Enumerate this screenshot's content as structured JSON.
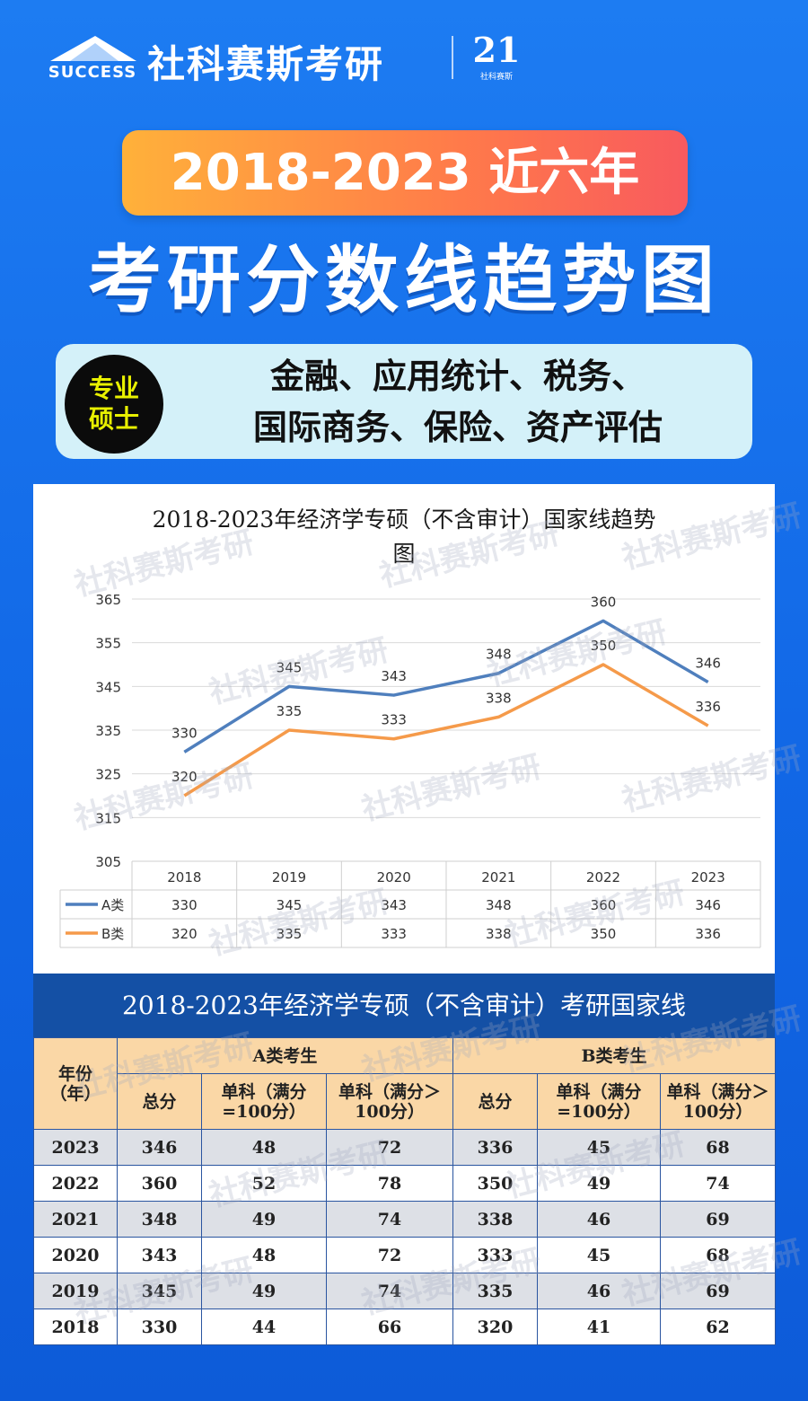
{
  "brand": {
    "success_text": "SUCCESS",
    "name": "社科赛斯考研",
    "badge_big": "21",
    "badge_small": "社科赛斯"
  },
  "hero": {
    "year_range": "2018-2023 近六年",
    "title": "考研分数线趋势图"
  },
  "tag": {
    "label_line1": "专业",
    "label_line2": "硕士",
    "majors_line1": "金融、应用统计、税务、",
    "majors_line2": "国际商务、保险、资产评估"
  },
  "watermark": "社科赛斯考研",
  "chart_data": {
    "type": "line",
    "title_line1": "2018-2023年经济学专硕（不含审计）国家线趋势",
    "title_line2": "图",
    "categories": [
      "2018",
      "2019",
      "2020",
      "2021",
      "2022",
      "2023"
    ],
    "series": [
      {
        "name": "A类",
        "values": [
          330,
          345,
          343,
          348,
          360,
          346
        ],
        "color": "#4f7fbd"
      },
      {
        "name": "B类",
        "values": [
          320,
          335,
          333,
          338,
          350,
          336
        ],
        "color": "#f59a4a"
      }
    ],
    "ylim": [
      305,
      365
    ],
    "yticks": [
      305,
      315,
      325,
      335,
      345,
      355,
      365
    ],
    "grid": true,
    "legend": "data-table-below"
  },
  "table": {
    "title": "2018-2023年经济学专硕（不含审计）考研国家线",
    "year_header": "年份（年）",
    "group_a": "A类考生",
    "group_b": "B类考生",
    "sub_total": "总分",
    "sub_100": "单科（满分=100分）",
    "sub_gt100": "单科（满分＞100分）",
    "rows": [
      {
        "year": "2023",
        "a_total": "346",
        "a_100": "48",
        "a_gt100": "72",
        "b_total": "336",
        "b_100": "45",
        "b_gt100": "68"
      },
      {
        "year": "2022",
        "a_total": "360",
        "a_100": "52",
        "a_gt100": "78",
        "b_total": "350",
        "b_100": "49",
        "b_gt100": "74"
      },
      {
        "year": "2021",
        "a_total": "348",
        "a_100": "49",
        "a_gt100": "74",
        "b_total": "338",
        "b_100": "46",
        "b_gt100": "69"
      },
      {
        "year": "2020",
        "a_total": "343",
        "a_100": "48",
        "a_gt100": "72",
        "b_total": "333",
        "b_100": "45",
        "b_gt100": "68"
      },
      {
        "year": "2019",
        "a_total": "345",
        "a_100": "49",
        "a_gt100": "74",
        "b_total": "335",
        "b_100": "46",
        "b_gt100": "69"
      },
      {
        "year": "2018",
        "a_total": "330",
        "a_100": "44",
        "a_gt100": "66",
        "b_total": "320",
        "b_100": "41",
        "b_gt100": "62"
      }
    ]
  }
}
